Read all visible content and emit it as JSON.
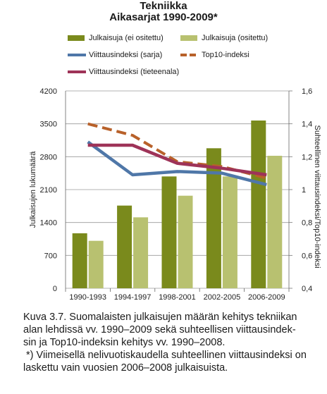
{
  "chart_data": {
    "type": "bar",
    "title": "Tekniikka",
    "subtitle": "Aikasarjat 1990-2009*",
    "categories": [
      "1990-1993",
      "1994-1997",
      "1998-2001",
      "2002-2005",
      "2006-2009"
    ],
    "bar_series": [
      {
        "name": "Julkaisuja (ei ositettu)",
        "color": "#7a8a1c",
        "values": [
          1170,
          1760,
          2380,
          2980,
          3570
        ]
      },
      {
        "name": "Julkaisuja (ositettu)",
        "color": "#b8c170",
        "values": [
          1010,
          1510,
          1970,
          2380,
          2820
        ]
      }
    ],
    "line_series": [
      {
        "name": "Viittausindeksi (sarja)",
        "color": "#4f77a8",
        "style": "solid",
        "values": [
          1.29,
          1.09,
          1.11,
          1.1,
          1.03
        ]
      },
      {
        "name": "Top10-indeksi",
        "color": "#b8612a",
        "style": "dashed",
        "values": [
          1.4,
          1.33,
          1.17,
          1.14,
          1.07
        ]
      },
      {
        "name": "Viittausindeksi (tieteenala)",
        "color": "#9e3358",
        "style": "solid",
        "values": [
          1.27,
          1.27,
          1.16,
          1.13,
          1.09
        ]
      }
    ],
    "ylabel": "Julkaisujen lukumäärä",
    "y2label": "Suhteellinen viittausindeksi/Top10-indeksi",
    "ylim": [
      0,
      4200
    ],
    "y_ticks": [
      "0",
      "700",
      "1400",
      "2100",
      "2800",
      "3500",
      "4200"
    ],
    "y2lim": [
      0.4,
      1.6
    ],
    "y2_ticks": [
      "0,4",
      "0,6",
      "0,8",
      "1",
      "1,2",
      "1,4",
      "1,6"
    ],
    "grid": true,
    "legend_position": "top"
  },
  "caption": {
    "lines": [
      "Kuva 3.7. Suomalaisten julkaisujen määrän kehitys tekniikan",
      "alan lehdissä vv. 1990–2009 sekä suhteellisen viittausindek-",
      "sin ja Top10-indeksin kehitys vv. 1990–2008.",
      " *) Viimeisellä nelivuotiskaudella suhteellinen viittausindeksi on",
      "laskettu vain vuosien 2006–2008 julkaisuista."
    ]
  }
}
